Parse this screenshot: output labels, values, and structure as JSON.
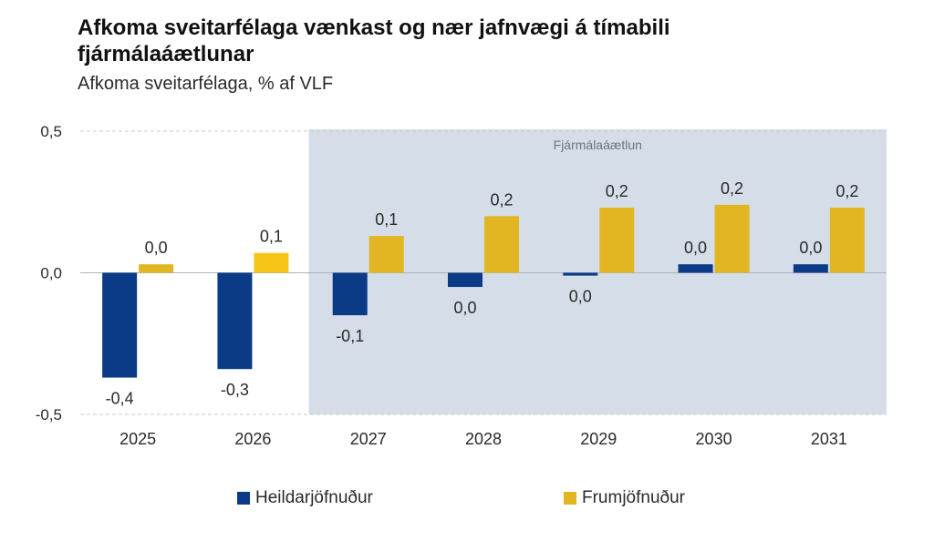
{
  "title": "Afkoma sveitarfélaga vænkast og nær jafnvægi á tímabili fjármálaáætlunar",
  "subtitle": "Afkoma sveitarfélaga, % af VLF",
  "colors": {
    "heildar": "#0b3a86",
    "frum": "#e2b623",
    "frum_2026": "#f5c518",
    "shade": "#d5dee8",
    "grid": "#c8c8c8",
    "zero": "#a9b4c0"
  },
  "chart_data": {
    "type": "bar",
    "categories": [
      "2025",
      "2026",
      "2027",
      "2028",
      "2029",
      "2030",
      "2031"
    ],
    "series": [
      {
        "name": "Heildarjöfnuður",
        "values": [
          -0.37,
          -0.34,
          -0.15,
          -0.05,
          -0.01,
          0.03,
          0.03
        ],
        "labels": [
          "-0,4",
          "-0,3",
          "-0,1",
          "0,0",
          "0,0",
          "0,0",
          "0,0"
        ]
      },
      {
        "name": "Frumjöfnuður",
        "values": [
          0.03,
          0.07,
          0.13,
          0.2,
          0.23,
          0.24,
          0.23
        ],
        "labels": [
          "0,0",
          "0,1",
          "0,1",
          "0,2",
          "0,2",
          "0,2",
          "0,2"
        ]
      }
    ],
    "ylim": [
      -0.5,
      0.5
    ],
    "yticks": [
      0.5,
      0.0,
      -0.5
    ],
    "ytick_labels": [
      "0,5",
      "0,0",
      "-0,5"
    ],
    "grid": true,
    "shaded_region": {
      "label": "Fjármálaáætlun",
      "from_category": "2027",
      "to_category": "2031"
    },
    "legend_position": "bottom"
  }
}
